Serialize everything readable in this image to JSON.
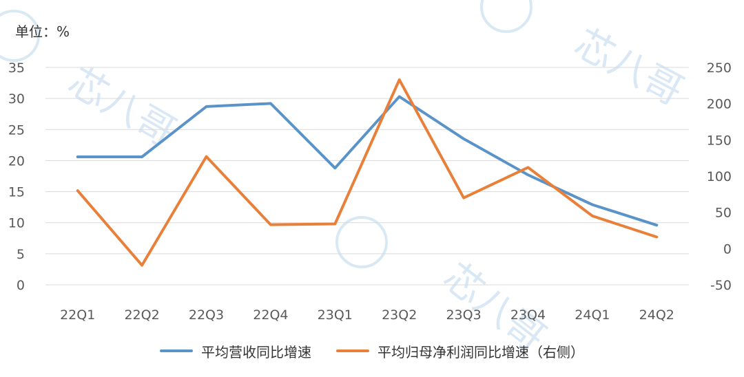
{
  "unit_label": "单位：%",
  "colors": {
    "series1": "#5a93c8",
    "series2": "#e8803a",
    "grid": "#d9d9d9",
    "axis_text": "#595959",
    "watermark": "#c9dff0"
  },
  "watermark": {
    "text": "芯八哥",
    "icon": "bird-logo-icon"
  },
  "chart_data": {
    "type": "line",
    "title": "",
    "categories": [
      "22Q1",
      "22Q2",
      "22Q3",
      "22Q4",
      "23Q1",
      "23Q2",
      "23Q3",
      "23Q4",
      "24Q1",
      "24Q2"
    ],
    "y_left": {
      "min": 0,
      "max": 35,
      "ticks": [
        "0",
        "5",
        "10",
        "15",
        "20",
        "25",
        "30",
        "35"
      ]
    },
    "y_right": {
      "min": -50,
      "max": 250,
      "ticks": [
        "-50",
        "0",
        "50",
        "100",
        "150",
        "200",
        "250"
      ]
    },
    "grid": true,
    "legend_position": "bottom",
    "series": [
      {
        "name": "平均营收同比增速",
        "axis": "left",
        "values": [
          20.6,
          20.6,
          28.7,
          29.2,
          18.8,
          30.3,
          23.5,
          17.7,
          12.9,
          9.6
        ]
      },
      {
        "name": "平均归母净利润同比增速（右侧）",
        "axis": "right",
        "values": [
          80,
          -23,
          127,
          33,
          34,
          233,
          70,
          112,
          45,
          16
        ]
      }
    ]
  }
}
